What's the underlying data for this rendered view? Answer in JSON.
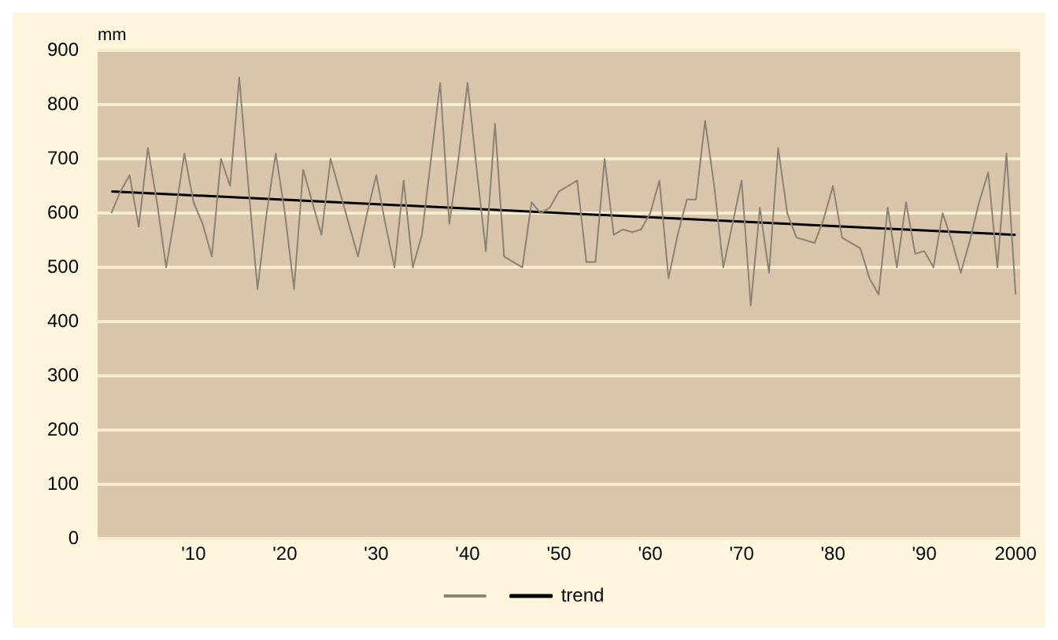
{
  "chart_data": {
    "type": "line",
    "ylabel": "mm",
    "x": [
      1901,
      1902,
      1903,
      1904,
      1905,
      1906,
      1907,
      1908,
      1909,
      1910,
      1911,
      1912,
      1913,
      1914,
      1915,
      1916,
      1917,
      1918,
      1919,
      1920,
      1921,
      1922,
      1923,
      1924,
      1925,
      1926,
      1927,
      1928,
      1929,
      1930,
      1931,
      1932,
      1933,
      1934,
      1935,
      1936,
      1937,
      1938,
      1939,
      1940,
      1941,
      1942,
      1943,
      1944,
      1945,
      1946,
      1947,
      1948,
      1949,
      1950,
      1951,
      1952,
      1953,
      1954,
      1955,
      1956,
      1957,
      1958,
      1959,
      1960,
      1961,
      1962,
      1963,
      1964,
      1965,
      1966,
      1967,
      1968,
      1969,
      1970,
      1971,
      1972,
      1973,
      1974,
      1975,
      1976,
      1977,
      1978,
      1979,
      1980,
      1981,
      1982,
      1983,
      1984,
      1985,
      1986,
      1987,
      1988,
      1989,
      1990,
      1991,
      1992,
      1993,
      1994,
      1995,
      1996,
      1997,
      1998,
      1999,
      2000
    ],
    "series": [
      {
        "color": "#8c8274",
        "values": [
          600,
          640,
          670,
          575,
          720,
          620,
          500,
          600,
          710,
          620,
          580,
          520,
          700,
          650,
          850,
          650,
          460,
          600,
          710,
          600,
          460,
          680,
          620,
          560,
          700,
          640,
          580,
          520,
          600,
          670,
          580,
          500,
          660,
          500,
          560,
          700,
          840,
          580,
          700,
          840,
          680,
          530,
          765,
          520,
          510,
          500,
          620,
          600,
          610,
          640,
          650,
          660,
          510,
          510,
          700,
          560,
          570,
          565,
          570,
          600,
          660,
          480,
          560,
          625,
          625,
          770,
          650,
          500,
          580,
          660,
          430,
          610,
          490,
          720,
          600,
          555,
          550,
          545,
          590,
          650,
          555,
          545,
          535,
          480,
          450,
          610,
          500,
          620,
          525,
          530,
          500,
          600,
          550,
          490,
          550,
          620,
          675,
          500,
          710,
          450
        ]
      },
      {
        "name": "trend",
        "type": "line",
        "color": "#000000",
        "x": [
          1901,
          2000
        ],
        "values": [
          640,
          560
        ]
      }
    ],
    "xlim": [
      1899.5,
      2000.5
    ],
    "xticks": [
      {
        "value": 1910,
        "label": "'10"
      },
      {
        "value": 1920,
        "label": "'20"
      },
      {
        "value": 1930,
        "label": "'30"
      },
      {
        "value": 1940,
        "label": "'40"
      },
      {
        "value": 1950,
        "label": "'50"
      },
      {
        "value": 1960,
        "label": "'60"
      },
      {
        "value": 1970,
        "label": "'70"
      },
      {
        "value": 1980,
        "label": "'80"
      },
      {
        "value": 1990,
        "label": "'90"
      },
      2000
    ],
    "ylim": [
      0,
      900
    ],
    "yticks": [
      0,
      100,
      200,
      300,
      400,
      500,
      600,
      700,
      800,
      900
    ],
    "grid": "y",
    "legend": "bottom",
    "marker": "none",
    "line_style": "solid"
  }
}
